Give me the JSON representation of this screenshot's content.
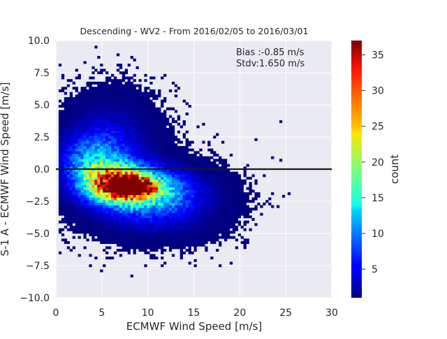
{
  "chart_data": {
    "type": "heatmap",
    "title": "Descending - WV2 - From 2016/02/05 to 2016/03/01",
    "xlabel": "ECMWF Wind Speed [m/s]",
    "ylabel": "S-1 A - ECMWF Wind Speed [m/s]",
    "xlim": [
      0,
      30
    ],
    "ylim": [
      -10,
      10
    ],
    "xticks": [
      "0",
      "5",
      "10",
      "15",
      "20",
      "25",
      "30"
    ],
    "yticks": [
      "10.0",
      "7.5",
      "5.0",
      "2.5",
      "0.0",
      "−2.5",
      "−5.0",
      "−7.5",
      "−10.0"
    ],
    "grid": true,
    "reference_line_y": 0,
    "annotations": [
      "Bias :-0.85 m/s",
      "Stdv:1.650 m/s"
    ],
    "colorbar": {
      "label": "count",
      "range": [
        1,
        37
      ],
      "ticks": [
        "5",
        "10",
        "15",
        "20",
        "25",
        "30",
        "35"
      ],
      "colormap": "jet"
    },
    "density_clusters": [
      {
        "x": 8.0,
        "y": -1.4,
        "sx": 1.6,
        "sy": 0.45,
        "peak": 37
      },
      {
        "x": 6.5,
        "y": -1.0,
        "sx": 2.2,
        "sy": 0.9,
        "peak": 22
      },
      {
        "x": 9.0,
        "y": -1.6,
        "sx": 3.2,
        "sy": 1.1,
        "peak": 14
      },
      {
        "x": 4.0,
        "y": 0.5,
        "sx": 2.4,
        "sy": 1.4,
        "peak": 10
      },
      {
        "x": 11.0,
        "y": -2.5,
        "sx": 4.2,
        "sy": 1.6,
        "peak": 6
      },
      {
        "x": 6.0,
        "y": 2.0,
        "sx": 3.0,
        "sy": 2.2,
        "peak": 4
      }
    ]
  },
  "colors": {
    "plot_background": "#eaeaf2",
    "grid": "#ffffff",
    "reference_line": "#1a1a1a",
    "text": "#262626"
  }
}
